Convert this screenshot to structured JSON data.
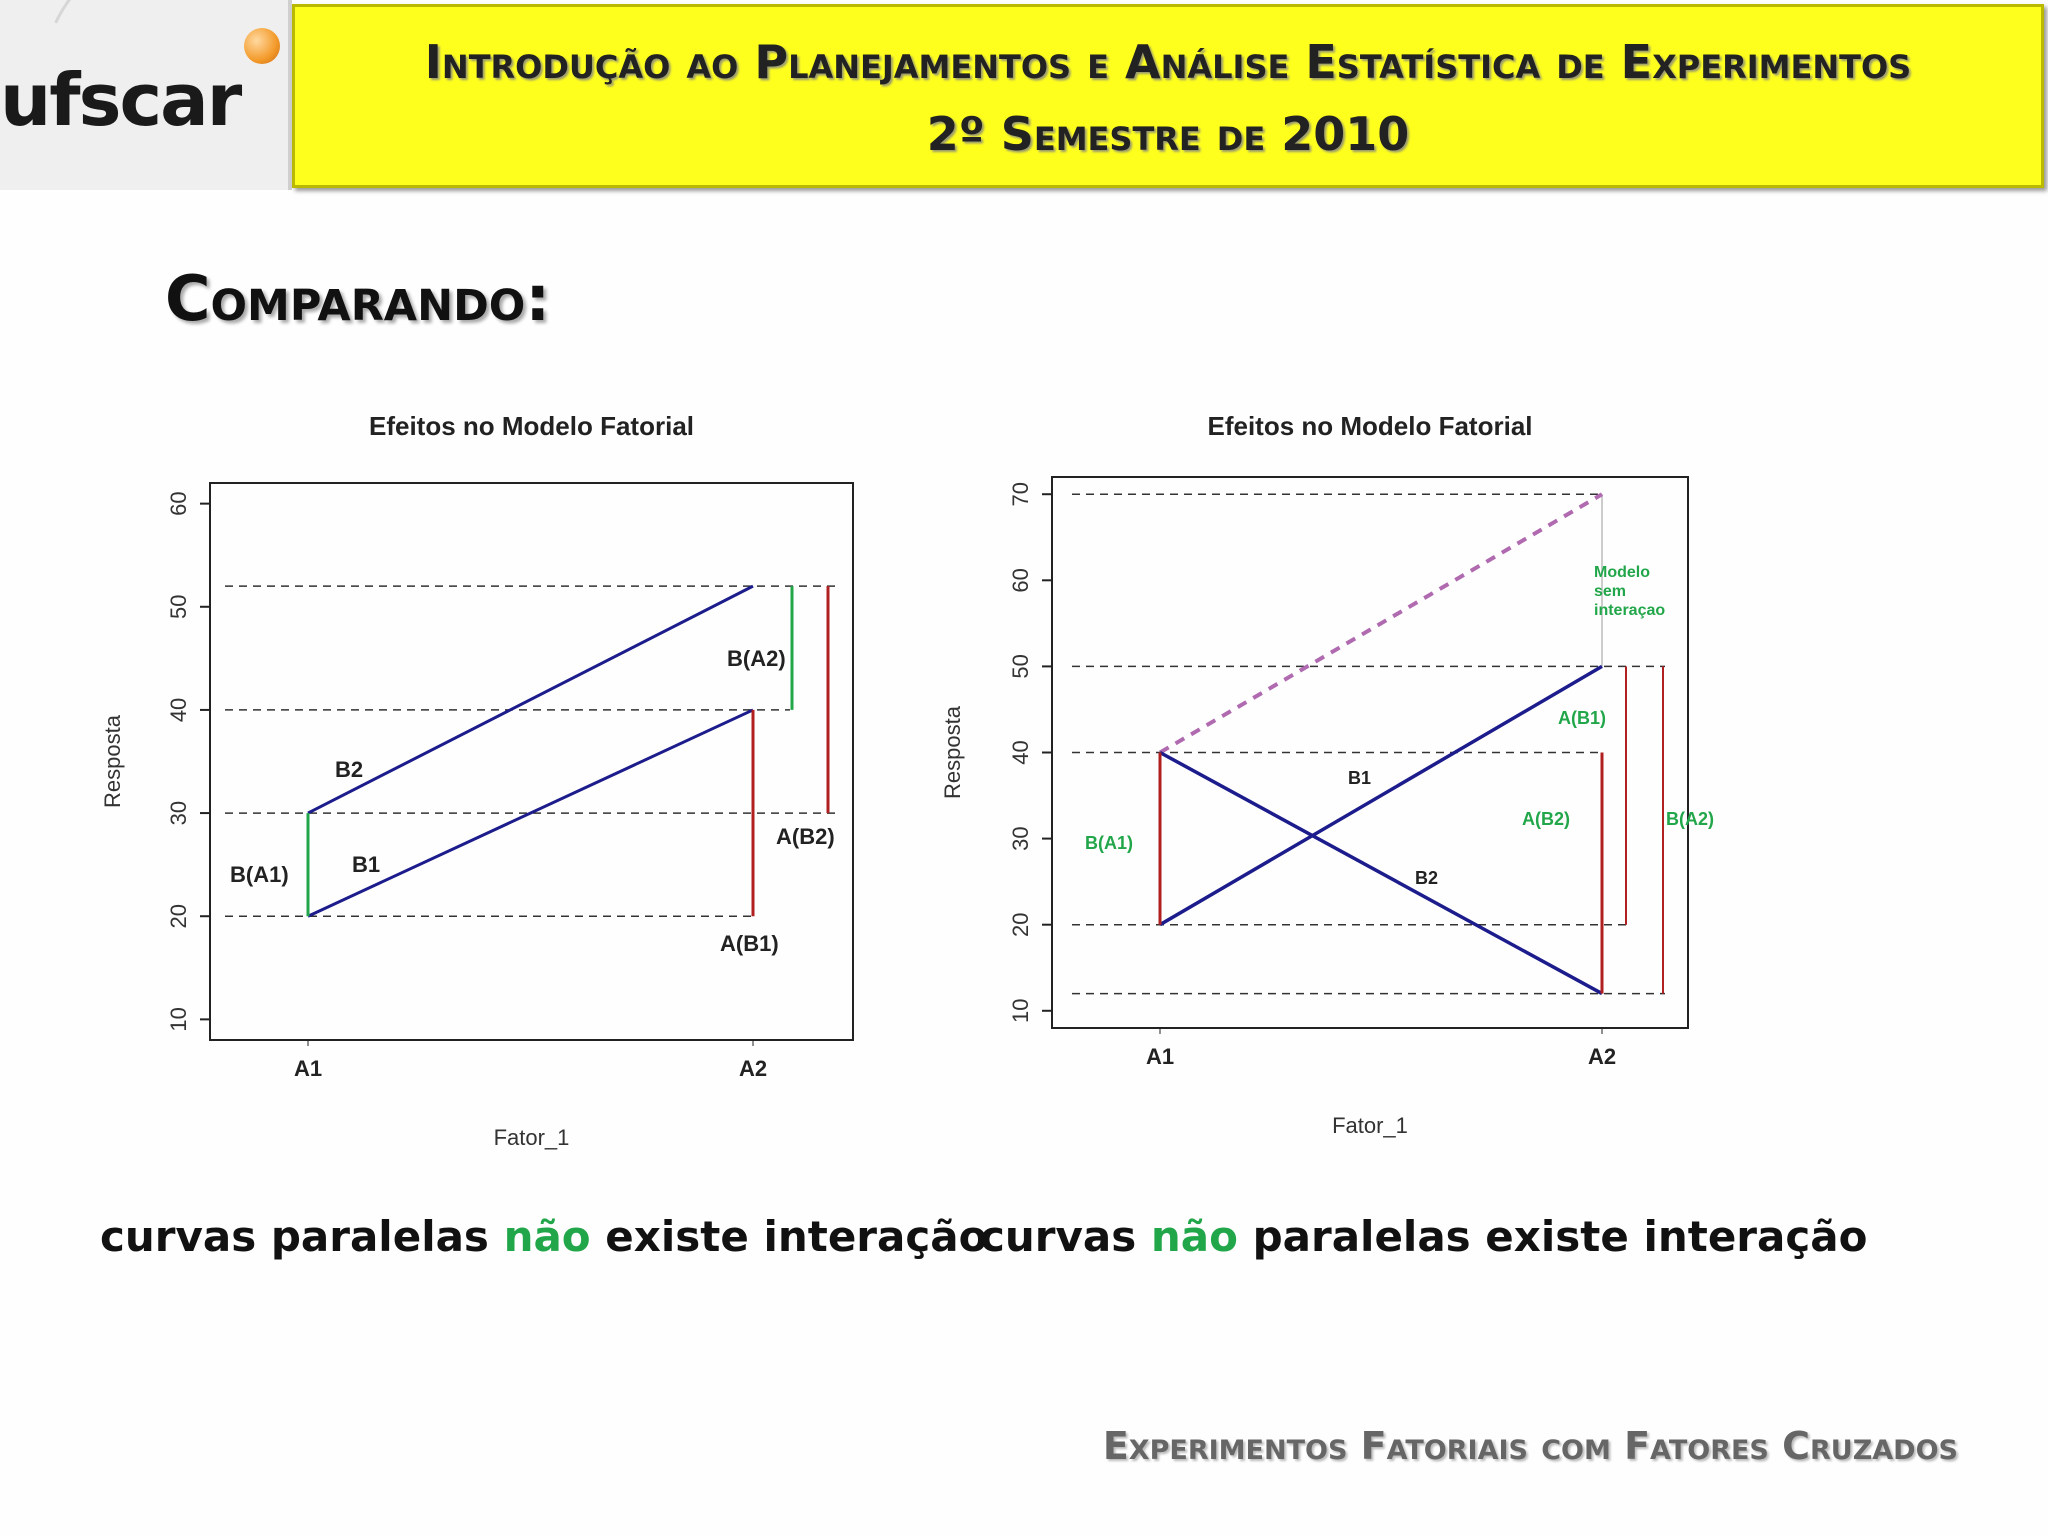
{
  "header": {
    "logo_text": "ufscar",
    "title_line1": "Introdução ao Planejamentos e Análise Estatística de Experimentos",
    "title_line2": "2º Semestre de 2010"
  },
  "section_title": "Comparando:",
  "captions": {
    "left_pre": "curvas paralelas ",
    "left_highlight": "não",
    "left_post": " existe interação",
    "right_pre": "curvas ",
    "right_highlight": "não",
    "right_post": " paralelas existe interação"
  },
  "footer": "Experimentos Fatoriais com Fatores Cruzados",
  "colors": {
    "header_bg": "#ffff1e",
    "series_line": "#1c1c8c",
    "green": "#22a64a",
    "red": "#b02020",
    "dashed_purple": "#b06ab0"
  },
  "chart_data": [
    {
      "type": "line",
      "title": "Efeitos no Modelo Fatorial",
      "xlabel": "Fator_1",
      "ylabel": "Resposta",
      "categories": [
        "A1",
        "A2"
      ],
      "ylim": [
        8,
        62
      ],
      "yticks": [
        10,
        20,
        30,
        40,
        50,
        60
      ],
      "series": [
        {
          "name": "B1",
          "values": [
            20,
            40
          ]
        },
        {
          "name": "B2",
          "values": [
            30,
            52
          ]
        }
      ],
      "reference_lines": [
        20,
        30,
        40,
        52
      ],
      "annotations": [
        "B(A1)",
        "B(A2)",
        "A(B1)",
        "A(B2)"
      ]
    },
    {
      "type": "line",
      "title": "Efeitos no Modelo Fatorial",
      "xlabel": "Fator_1",
      "ylabel": "Resposta",
      "categories": [
        "A1",
        "A2"
      ],
      "ylim": [
        8,
        72
      ],
      "yticks": [
        10,
        20,
        30,
        40,
        50,
        60,
        70
      ],
      "series": [
        {
          "name": "B1",
          "values": [
            20,
            50
          ]
        },
        {
          "name": "B2",
          "values": [
            40,
            12
          ]
        },
        {
          "values": [
            40,
            70
          ]
        }
      ],
      "reference_lines": [
        12,
        20,
        40,
        50,
        70
      ],
      "annotations": [
        "B(A1)",
        "A(B1)",
        "A(B2)",
        "B(A2)",
        "Modelo sem interaçao"
      ]
    }
  ]
}
